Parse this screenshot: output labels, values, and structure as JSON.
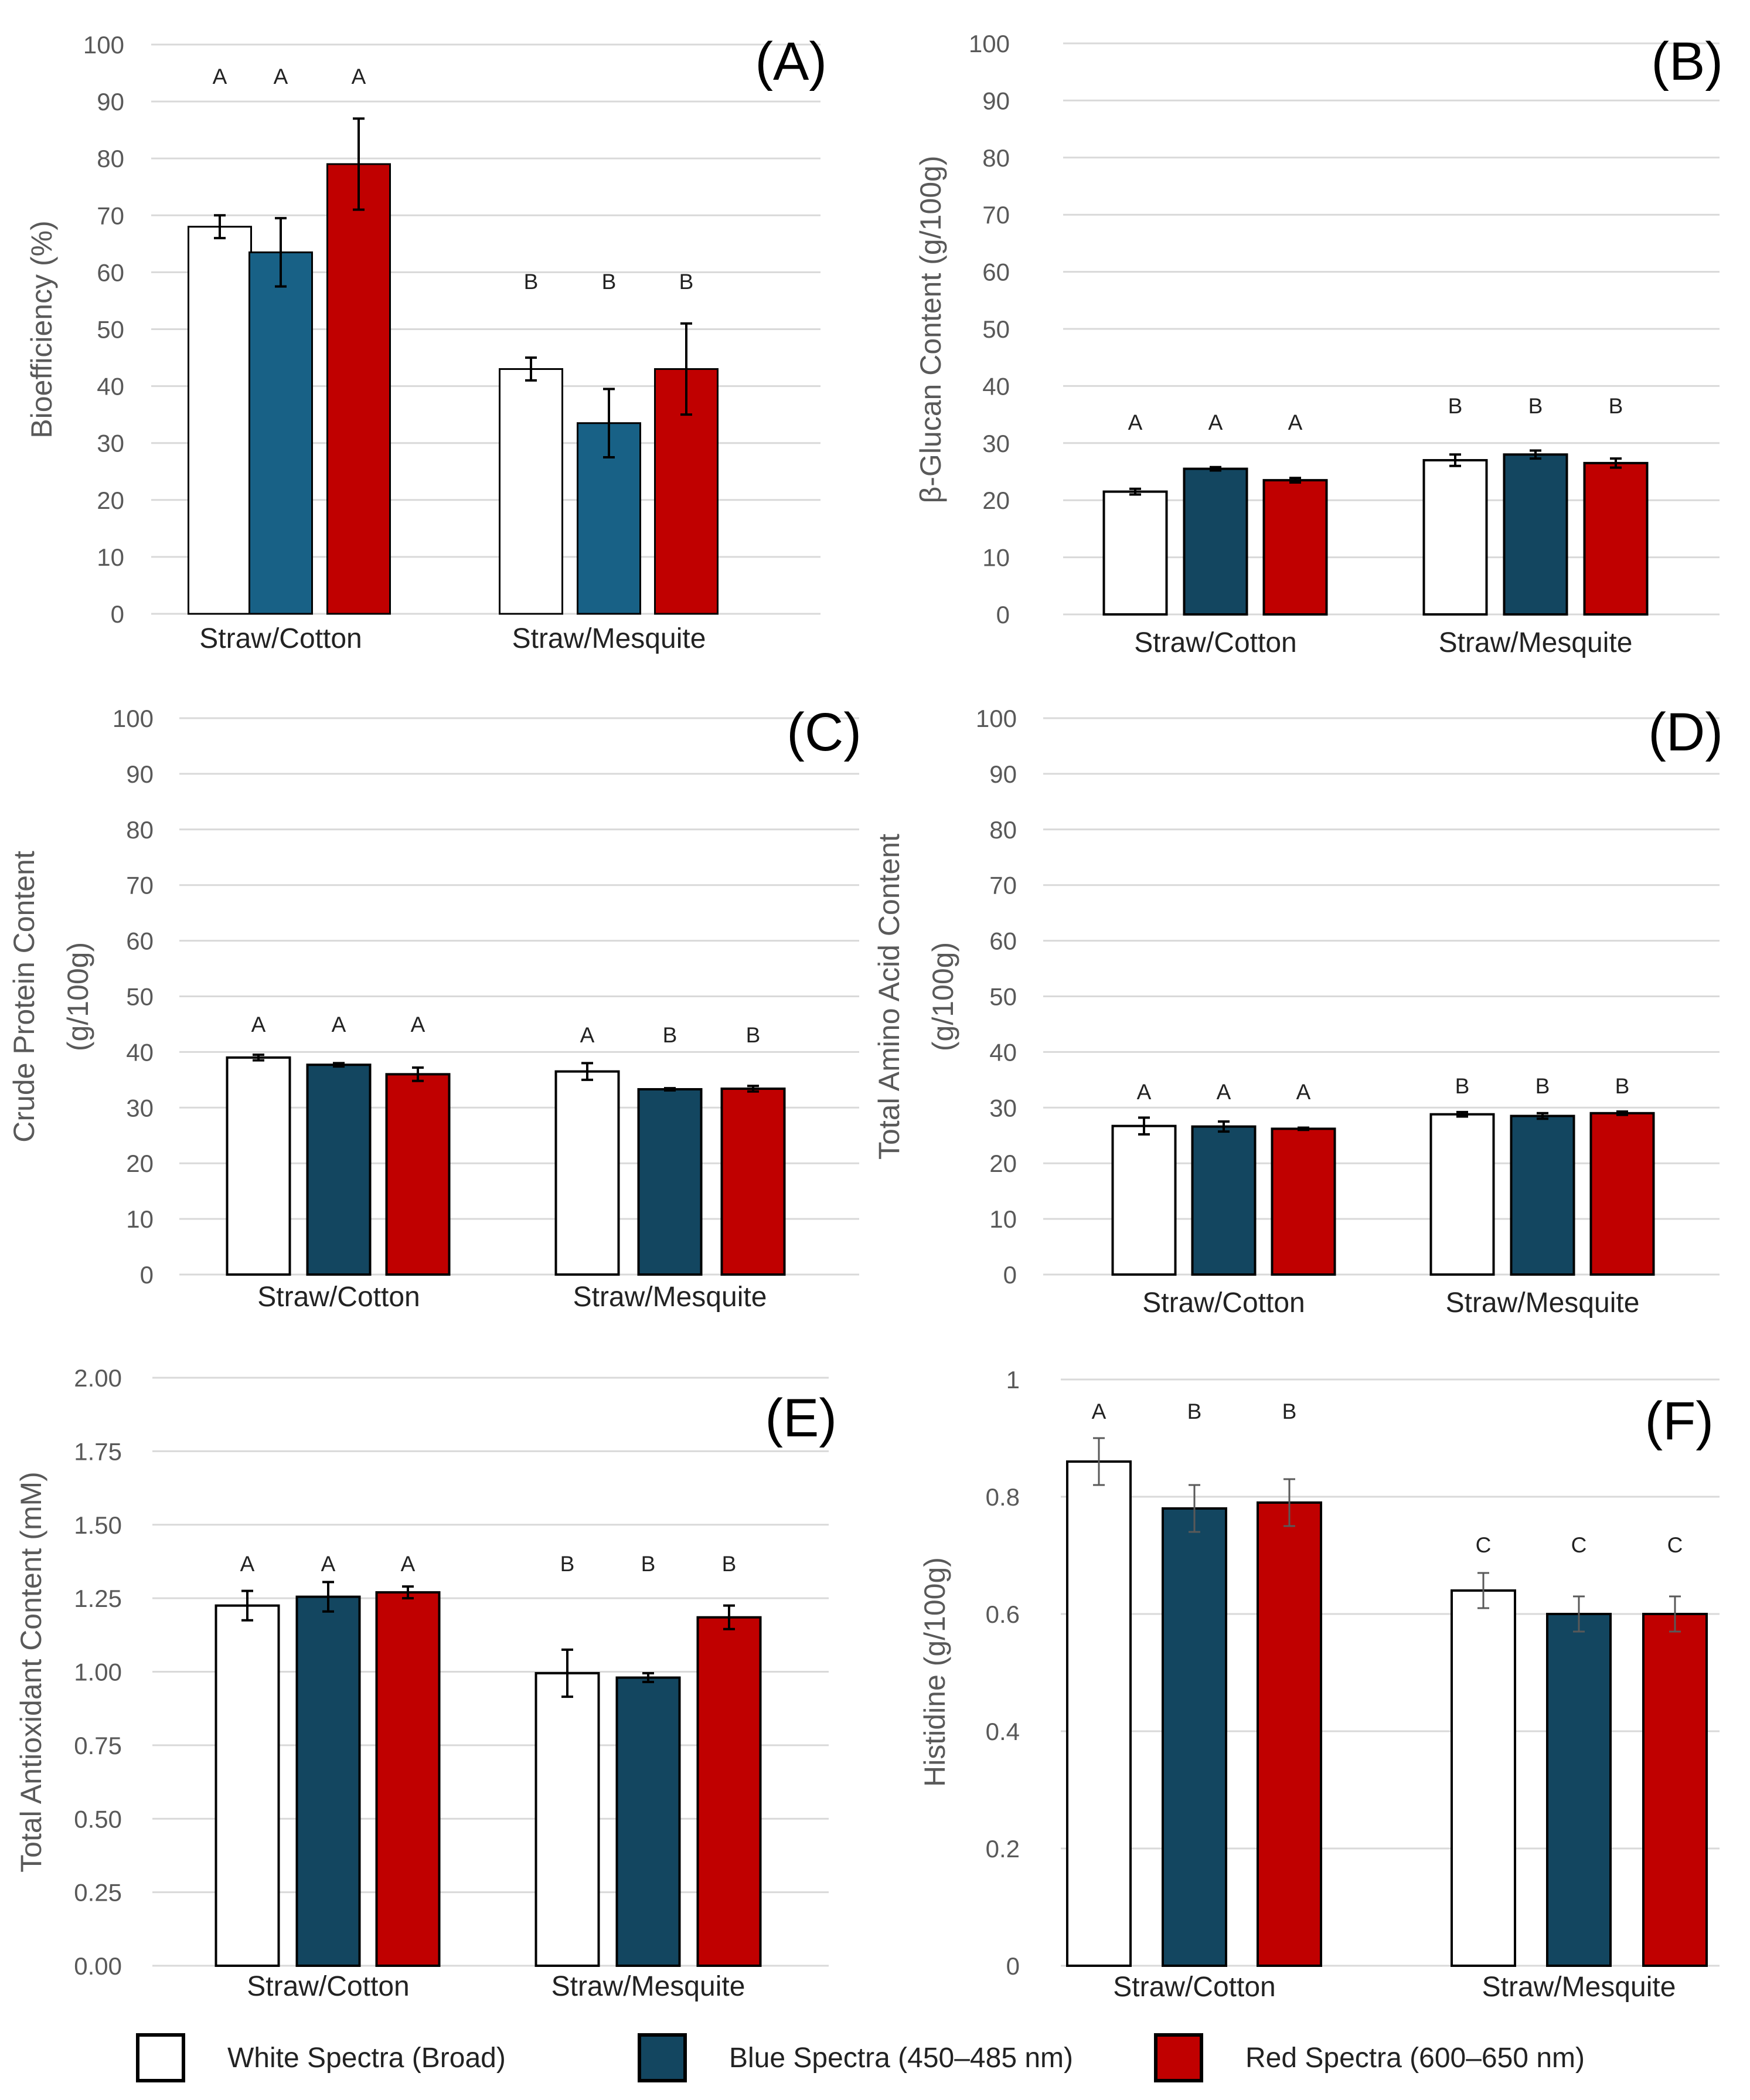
{
  "colors": {
    "White Spectra (Broad)": "#ffffff",
    "Blue Spectra (450–485 nm)": "#134660",
    "Blue Spectra (450–485 nm) (A)": "#186186",
    "Red Spectra (600–650 nm)": "#c00000",
    "gridline": "#d9d9d9",
    "tick_text": "#595959",
    "label_text": "#595959",
    "errorbar": "#000000"
  },
  "legend": {
    "items": [
      {
        "label": "White Spectra (Broad)",
        "color": "#ffffff"
      },
      {
        "label": "Blue Spectra (450–485 nm)",
        "color": "#134660"
      },
      {
        "label": "Red Spectra (600–650 nm)",
        "color": "#c00000"
      }
    ]
  },
  "chart_data": [
    {
      "type": "bar",
      "panel": "(A)",
      "title": "",
      "ylabel": "Bioefficiency (%)",
      "ylim": [
        0,
        100
      ],
      "yticks": [
        "0",
        "10",
        "20",
        "30",
        "40",
        "50",
        "60",
        "70",
        "80",
        "90",
        "100"
      ],
      "categories": [
        "Straw/Cotton",
        "Straw/Mesquite"
      ],
      "series": [
        {
          "name": "White Spectra (Broad)",
          "values": [
            68,
            43
          ],
          "errors": [
            2,
            2
          ],
          "letters": [
            "A",
            "B"
          ]
        },
        {
          "name": "Blue Spectra (450–485 nm)",
          "values": [
            63.5,
            33.5
          ],
          "errors": [
            6,
            6
          ],
          "letters": [
            "A",
            "B"
          ]
        },
        {
          "name": "Red Spectra (600–650 nm)",
          "values": [
            79,
            43
          ],
          "errors": [
            8,
            8
          ],
          "letters": [
            "A",
            "B"
          ]
        }
      ]
    },
    {
      "type": "bar",
      "panel": "(B)",
      "title": "",
      "ylabel": "β-Glucan Content (g/100g)",
      "ylim": [
        0,
        100
      ],
      "yticks": [
        "0",
        "10",
        "20",
        "30",
        "40",
        "50",
        "60",
        "70",
        "80",
        "90",
        "100"
      ],
      "categories": [
        "Straw/Cotton",
        "Straw/Mesquite"
      ],
      "series": [
        {
          "name": "White Spectra (Broad)",
          "values": [
            21.5,
            27
          ],
          "errors": [
            0.5,
            1
          ],
          "letters": [
            "A",
            "B"
          ]
        },
        {
          "name": "Blue Spectra (450–485 nm)",
          "values": [
            25.5,
            28
          ],
          "errors": [
            0.3,
            0.7
          ],
          "letters": [
            "A",
            "B"
          ]
        },
        {
          "name": "Red Spectra (600–650 nm)",
          "values": [
            23.5,
            26.5
          ],
          "errors": [
            0.4,
            0.8
          ],
          "letters": [
            "A",
            "B"
          ]
        }
      ]
    },
    {
      "type": "bar",
      "panel": "(C)",
      "title": "",
      "ylabel": "Crude Protein Content (g/100g)",
      "ylim": [
        0,
        100
      ],
      "yticks": [
        "0",
        "10",
        "20",
        "30",
        "40",
        "50",
        "60",
        "70",
        "80",
        "90",
        "100"
      ],
      "categories": [
        "Straw/Cotton",
        "Straw/Mesquite"
      ],
      "series": [
        {
          "name": "White Spectra (Broad)",
          "values": [
            39,
            36.5
          ],
          "errors": [
            0.5,
            1.5
          ],
          "letters": [
            "A",
            "A"
          ]
        },
        {
          "name": "Blue Spectra (450–485 nm)",
          "values": [
            37.7,
            33.3
          ],
          "errors": [
            0.3,
            0.2
          ],
          "letters": [
            "A",
            "B"
          ]
        },
        {
          "name": "Red Spectra (600–650 nm)",
          "values": [
            36,
            33.4
          ],
          "errors": [
            1.2,
            0.5
          ],
          "letters": [
            "A",
            "B"
          ]
        }
      ]
    },
    {
      "type": "bar",
      "panel": "(D)",
      "title": "",
      "ylabel": "Total Amino Acid Content (g/100g)",
      "ylim": [
        0,
        100
      ],
      "yticks": [
        "0",
        "10",
        "20",
        "30",
        "40",
        "50",
        "60",
        "70",
        "80",
        "90",
        "100"
      ],
      "categories": [
        "Straw/Cotton",
        "Straw/Mesquite"
      ],
      "series": [
        {
          "name": "White Spectra (Broad)",
          "values": [
            26.7,
            28.8
          ],
          "errors": [
            1.5,
            0.4
          ],
          "letters": [
            "A",
            "B"
          ]
        },
        {
          "name": "Blue Spectra (450–485 nm)",
          "values": [
            26.6,
            28.5
          ],
          "errors": [
            0.9,
            0.5
          ],
          "letters": [
            "A",
            "B"
          ]
        },
        {
          "name": "Red Spectra (600–650 nm)",
          "values": [
            26.2,
            29
          ],
          "errors": [
            0.2,
            0.3
          ],
          "letters": [
            "A",
            "B"
          ]
        }
      ]
    },
    {
      "type": "bar",
      "panel": "(E)",
      "title": "",
      "ylabel": "Total Antioxidant Content (mM)",
      "ylim": [
        0,
        2
      ],
      "yticks": [
        "0.00",
        "0.25",
        "0.50",
        "0.75",
        "1.00",
        "1.25",
        "1.50",
        "1.75",
        "2.00"
      ],
      "categories": [
        "Straw/Cotton",
        "Straw/Mesquite"
      ],
      "series": [
        {
          "name": "White Spectra (Broad)",
          "values": [
            1.225,
            0.995
          ],
          "errors": [
            0.05,
            0.08
          ],
          "letters": [
            "A",
            "B"
          ]
        },
        {
          "name": "Blue Spectra (450–485 nm)",
          "values": [
            1.255,
            0.98
          ],
          "errors": [
            0.05,
            0.015
          ],
          "letters": [
            "A",
            "B"
          ]
        },
        {
          "name": "Red Spectra (600–650 nm)",
          "values": [
            1.27,
            1.185
          ],
          "errors": [
            0.02,
            0.04
          ],
          "letters": [
            "A",
            "B"
          ]
        }
      ]
    },
    {
      "type": "bar",
      "panel": "(F)",
      "title": "",
      "ylabel": "Histidine (g/100g)",
      "ylim": [
        0,
        1
      ],
      "yticks": [
        "0",
        "0.2",
        "0.4",
        "0.6",
        "0.8",
        "1"
      ],
      "categories": [
        "Straw/Cotton",
        "Straw/Mesquite"
      ],
      "series": [
        {
          "name": "White Spectra (Broad)",
          "values": [
            0.86,
            0.64
          ],
          "errors": [
            0.04,
            0.03
          ],
          "letters": [
            "A",
            "C"
          ]
        },
        {
          "name": "Blue Spectra (450–485 nm)",
          "values": [
            0.78,
            0.6
          ],
          "errors": [
            0.04,
            0.03
          ],
          "letters": [
            "B",
            "C"
          ]
        },
        {
          "name": "Red Spectra (600–650 nm)",
          "values": [
            0.79,
            0.6
          ],
          "errors": [
            0.04,
            0.03
          ],
          "letters": [
            "B",
            "C"
          ]
        }
      ]
    }
  ]
}
